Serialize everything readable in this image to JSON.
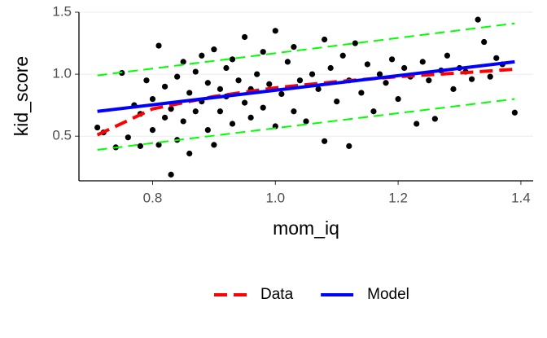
{
  "chart_data": {
    "type": "scatter",
    "x_label": "mom_iq",
    "y_label": "kid_score",
    "xlim": [
      0.68,
      1.42
    ],
    "ylim": [
      0.14,
      1.5
    ],
    "xticks": [
      0.8,
      {
        "value": 1,
        "label": "1.0"
      },
      1.2,
      1.4
    ],
    "yticks": [
      0.5,
      {
        "value": 1,
        "label": "1.0"
      },
      1.5
    ],
    "grid": true,
    "legend_position": "bottom",
    "points": {
      "color": "#000000",
      "x": [
        0.71,
        0.72,
        0.74,
        0.75,
        0.76,
        0.77,
        0.78,
        0.78,
        0.79,
        0.8,
        0.8,
        0.81,
        0.81,
        0.82,
        0.82,
        0.83,
        0.83,
        0.84,
        0.84,
        0.85,
        0.85,
        0.86,
        0.86,
        0.87,
        0.87,
        0.88,
        0.88,
        0.89,
        0.89,
        0.9,
        0.9,
        0.91,
        0.91,
        0.92,
        0.92,
        0.93,
        0.93,
        0.94,
        0.95,
        0.95,
        0.96,
        0.96,
        0.97,
        0.98,
        0.98,
        0.99,
        1.0,
        1.0,
        1.01,
        1.02,
        1.03,
        1.03,
        1.04,
        1.05,
        1.06,
        1.07,
        1.08,
        1.08,
        1.09,
        1.1,
        1.11,
        1.12,
        1.12,
        1.13,
        1.14,
        1.15,
        1.16,
        1.17,
        1.18,
        1.19,
        1.2,
        1.21,
        1.22,
        1.23,
        1.24,
        1.25,
        1.26,
        1.27,
        1.28,
        1.29,
        1.3,
        1.31,
        1.32,
        1.33,
        1.34,
        1.35,
        1.36,
        1.37,
        1.39
      ],
      "y": [
        0.57,
        0.53,
        0.41,
        1.01,
        0.49,
        0.75,
        0.42,
        0.68,
        0.95,
        0.8,
        0.55,
        1.23,
        0.43,
        0.9,
        0.65,
        0.19,
        0.72,
        0.98,
        0.47,
        1.1,
        0.62,
        0.85,
        0.36,
        1.02,
        0.7,
        0.78,
        1.15,
        0.93,
        0.55,
        1.2,
        0.43,
        0.88,
        0.7,
        1.05,
        0.82,
        0.6,
        1.12,
        0.95,
        0.77,
        1.3,
        0.88,
        0.65,
        1.0,
        0.73,
        1.18,
        0.92,
        1.35,
        0.58,
        0.84,
        1.1,
        0.7,
        1.22,
        0.95,
        0.62,
        1.0,
        0.88,
        0.46,
        1.28,
        1.05,
        0.78,
        1.15,
        0.42,
        0.95,
        1.25,
        0.85,
        1.08,
        0.7,
        1.0,
        0.93,
        1.12,
        0.8,
        1.05,
        0.98,
        0.6,
        1.1,
        0.95,
        0.64,
        1.03,
        1.15,
        0.88,
        1.05,
        1.02,
        0.96,
        1.44,
        1.26,
        0.98,
        1.13,
        1.08,
        0.69
      ]
    },
    "series": [
      {
        "color": "#00ff00",
        "dash": true,
        "x": [
          0.71,
          1.39
        ],
        "values": [
          0.99,
          1.41
        ]
      },
      {
        "color": "#00ff00",
        "dash": true,
        "x": [
          0.71,
          1.39
        ],
        "values": [
          0.39,
          0.8
        ]
      },
      {
        "name": "Data",
        "color": "#ff0000",
        "dash": true,
        "x": [
          0.71,
          0.8,
          0.9,
          1.0,
          1.1,
          1.2,
          1.3,
          1.39
        ],
        "values": [
          0.51,
          0.72,
          0.82,
          0.89,
          0.94,
          0.98,
          1.01,
          1.04
        ]
      },
      {
        "name": "Model",
        "color": "#0000ff",
        "dash": false,
        "x": [
          0.71,
          1.39
        ],
        "values": [
          0.7,
          1.1
        ]
      }
    ]
  }
}
